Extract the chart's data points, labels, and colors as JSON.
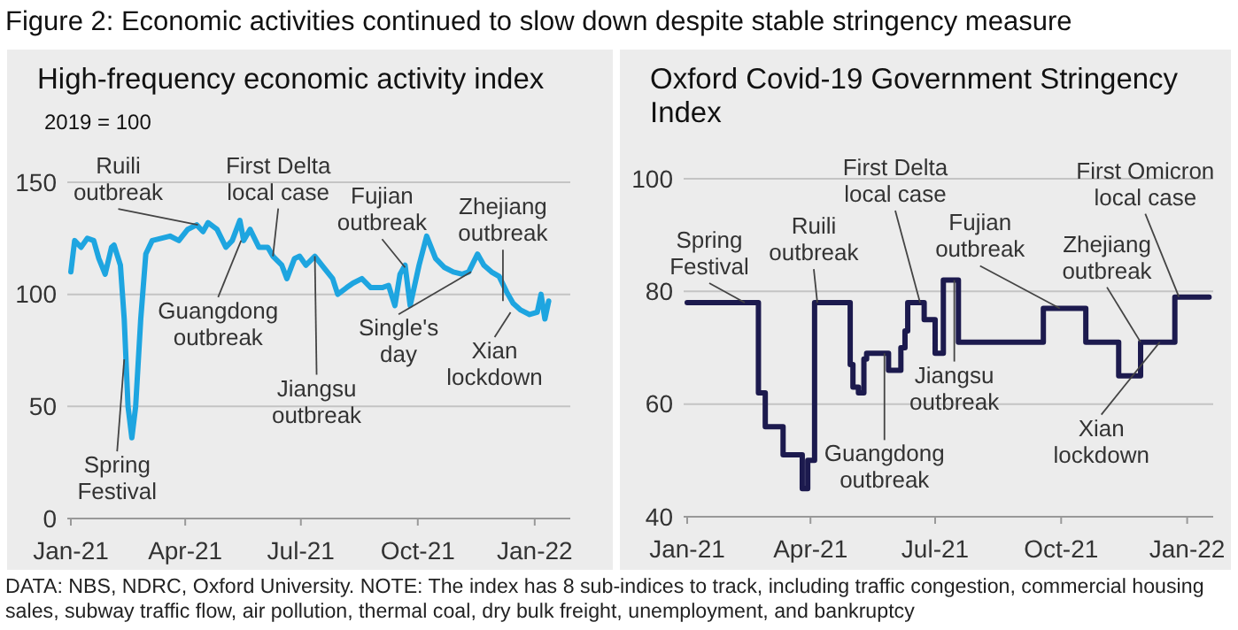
{
  "chart_data": [
    {
      "type": "line",
      "title": "Figure 2: Economic activities continued to slow down despite stable stringency measure",
      "subtitle": "High-frequency economic activity index",
      "ylabel": "2019 = 100",
      "x": [
        "2021-01-01",
        "2021-01-04",
        "2021-01-09",
        "2021-01-14",
        "2021-01-19",
        "2021-01-23",
        "2021-01-28",
        "2021-02-02",
        "2021-02-04",
        "2021-02-09",
        "2021-02-12",
        "2021-02-15",
        "2021-02-18",
        "2021-02-21",
        "2021-02-25",
        "2021-03-01",
        "2021-03-06",
        "2021-03-13",
        "2021-03-20",
        "2021-03-27",
        "2021-04-03",
        "2021-04-10",
        "2021-04-15",
        "2021-04-19",
        "2021-04-26",
        "2021-05-03",
        "2021-05-08",
        "2021-05-14",
        "2021-05-17",
        "2021-05-22",
        "2021-05-29",
        "2021-06-05",
        "2021-06-09",
        "2021-06-16",
        "2021-06-20",
        "2021-06-26",
        "2021-06-30",
        "2021-07-05",
        "2021-07-12",
        "2021-07-19",
        "2021-07-26",
        "2021-07-30",
        "2021-08-06",
        "2021-08-11",
        "2021-08-18",
        "2021-08-25",
        "2021-09-03",
        "2021-09-08",
        "2021-09-13",
        "2021-09-17",
        "2021-09-21",
        "2021-09-25",
        "2021-10-02",
        "2021-10-08",
        "2021-10-15",
        "2021-10-22",
        "2021-10-29",
        "2021-11-05",
        "2021-11-10",
        "2021-11-17",
        "2021-11-22",
        "2021-11-28",
        "2021-12-04",
        "2021-12-10",
        "2021-12-15",
        "2021-12-21",
        "2021-12-28",
        "2022-01-03",
        "2022-01-06",
        "2022-01-09",
        "2022-01-12"
      ],
      "series": [
        {
          "color": "#1ea5e0",
          "values": [
            110,
            124,
            121,
            125,
            124,
            116,
            109,
            121,
            122,
            113,
            89,
            50,
            36,
            50,
            89,
            118,
            124,
            125,
            126,
            124,
            129,
            131,
            128,
            132,
            129,
            121,
            124,
            133,
            124,
            129,
            121,
            121,
            117,
            113,
            107,
            116,
            117,
            113,
            117,
            112,
            107,
            100,
            103,
            105,
            107,
            103,
            103,
            104,
            95,
            109,
            113,
            95,
            113,
            126,
            116,
            112,
            110,
            109,
            110,
            118,
            113,
            110,
            108,
            101,
            96,
            93,
            91,
            92,
            100,
            89,
            97
          ]
        }
      ],
      "xlim": [
        "2021-01-01",
        "2022-01-29"
      ],
      "ylim": [
        0,
        150
      ],
      "xticks": [
        {
          "value": "2021-01-01",
          "label": "Jan-21"
        },
        {
          "value": "2021-04-01",
          "label": "Apr-21"
        },
        {
          "value": "2021-07-01",
          "label": "Jul-21"
        },
        {
          "value": "2021-10-01",
          "label": "Oct-21"
        },
        {
          "value": "2022-01-01",
          "label": "Jan-22"
        }
      ],
      "yticks": [
        0,
        50,
        100,
        150
      ],
      "grid": "y",
      "annotations": [
        {
          "text": "Spring Festival",
          "x": "2021-02-12",
          "y": 71
        },
        {
          "text": "Ruili outbreak",
          "x": "2021-04-11",
          "y": 131
        },
        {
          "text": "Guangdong outbreak",
          "x": "2021-05-15",
          "y": 124
        },
        {
          "text": "First Delta local case",
          "x": "2021-06-09",
          "y": 117
        },
        {
          "text": "Jiangsu outbreak",
          "x": "2021-07-12",
          "y": 117
        },
        {
          "text": "Fujian outbreak",
          "x": "2021-09-21",
          "y": 112
        },
        {
          "text": "Single's day",
          "x": "2021-11-12",
          "y": 110
        },
        {
          "text": "Zhejiang outbreak",
          "x": "2021-12-07",
          "y": 97
        },
        {
          "text": "Xian lockdown",
          "x": "2021-12-13",
          "y": 92
        }
      ]
    },
    {
      "type": "step",
      "title": "Oxford Covid-19 Government Stringency Index",
      "x": [
        "2021-01-01",
        "2021-02-22",
        "2021-02-27",
        "2021-03-12",
        "2021-03-26",
        "2021-03-30",
        "2021-04-04",
        "2021-04-30",
        "2021-05-02",
        "2021-05-06",
        "2021-05-10",
        "2021-05-12",
        "2021-05-28",
        "2021-06-06",
        "2021-06-09",
        "2021-06-11",
        "2021-06-23",
        "2021-07-01",
        "2021-07-07",
        "2021-07-18",
        "2021-09-18",
        "2021-10-19",
        "2021-11-12",
        "2021-11-28",
        "2021-12-23",
        "2022-01-17"
      ],
      "series": [
        {
          "color": "#1c1a4e",
          "values": [
            78,
            62,
            56,
            51,
            45,
            50,
            78,
            67,
            63,
            62,
            68,
            69,
            66,
            70,
            73,
            78,
            75,
            69,
            82,
            71,
            77,
            71,
            65,
            71,
            79,
            79
          ]
        }
      ],
      "xlim": [
        "2021-01-01",
        "2022-01-20"
      ],
      "ylim": [
        40,
        100
      ],
      "xticks": [
        {
          "value": "2021-01-01",
          "label": "Jan-21"
        },
        {
          "value": "2021-04-01",
          "label": "Apr-21"
        },
        {
          "value": "2021-07-01",
          "label": "Jul-21"
        },
        {
          "value": "2021-10-01",
          "label": "Oct-21"
        },
        {
          "value": "2022-01-01",
          "label": "Jan-22"
        }
      ],
      "yticks": [
        40,
        60,
        80,
        100
      ],
      "grid": "y",
      "annotations": [
        {
          "text": "Spring Festival",
          "x": "2021-02-12",
          "y": 78
        },
        {
          "text": "Ruili outbreak",
          "x": "2021-04-06",
          "y": 78
        },
        {
          "text": "First Delta local case",
          "x": "2021-06-20",
          "y": 78
        },
        {
          "text": "Guangdong outbreak",
          "x": "2021-05-25",
          "y": 69
        },
        {
          "text": "Jiangsu outbreak",
          "x": "2021-07-15",
          "y": 82
        },
        {
          "text": "Fujian outbreak",
          "x": "2021-09-30",
          "y": 77
        },
        {
          "text": "Zhejiang outbreak",
          "x": "2021-11-28",
          "y": 71
        },
        {
          "text": "First Omicron local case",
          "x": "2021-12-26",
          "y": 79
        },
        {
          "text": "Xian lockdown",
          "x": "2021-12-12",
          "y": 71
        },
        "DATA: NBS, NDRC, Oxford University. NOTE: The index has 8 sub-indices to track, including traffic congestion, commercial housing sales, subway traffic flow, air pollution, thermal coal, dry bulk freight, unemployment, and bankruptcy"
      ]
    }
  ]
}
